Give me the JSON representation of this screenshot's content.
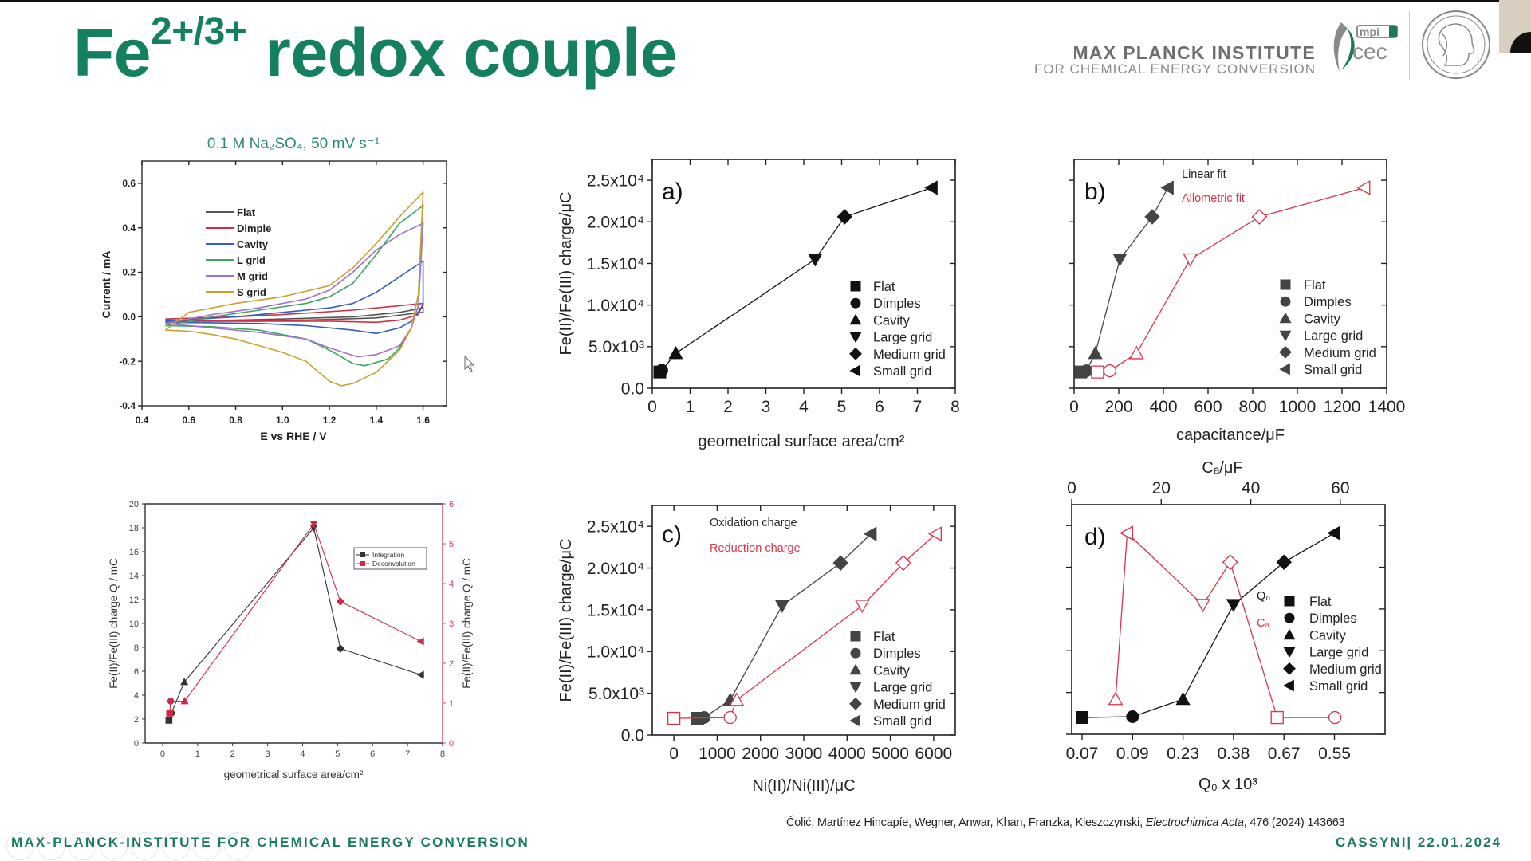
{
  "header": {
    "title_base": "Fe",
    "title_sup": "2+/3+",
    "title_rest": " redox couple",
    "institute_name": "MAX PLANCK INSTITUTE",
    "institute_subtitle": "FOR CHEMICAL ENERGY CONVERSION",
    "logo_text_top": "mpi",
    "logo_text_bottom": "cec"
  },
  "footer": {
    "institute": "MAX-PLANCK-INSTITUTE FOR CHEMICAL ENERGY CONVERSION",
    "citation_authors": "Čolić, Martínez Hincapíe, Wegner, Anwar, Khan, Franzka, Kleszczynski, ",
    "citation_journal": "Electrochimica Acta",
    "citation_rest": ", 476 (2024) 143663",
    "event": "CASSYNI| 22.01.2024"
  },
  "samples": [
    "Flat",
    "Dimples",
    "Cavity",
    "Large grid",
    "Medium grid",
    "Small grid"
  ],
  "colors": {
    "brand_green": "#14805f",
    "red": "#d8344a"
  },
  "chart_data": [
    {
      "type": "line",
      "title": "0.1 M Na₂SO₄, 50 mV s⁻¹",
      "xlabel": "E vs RHE / V",
      "ylabel": "Current / mA",
      "xlim": [
        0.4,
        1.7
      ],
      "ylim": [
        -0.4,
        0.7
      ],
      "xticks": [
        0.4,
        0.6,
        0.8,
        1.0,
        1.2,
        1.4,
        1.6
      ],
      "xtick_labels": [
        "0.4",
        "0.6",
        "0.8",
        "1.0",
        "1.2",
        "1.4",
        "1.6"
      ],
      "yticks": [
        -0.4,
        -0.2,
        0.0,
        0.2,
        0.4,
        0.6
      ],
      "ytick_labels": [
        "-0.4",
        "-0.2",
        "0.0",
        "0.2",
        "0.4",
        "0.6"
      ],
      "legend": "top-left",
      "grid": false,
      "series": [
        {
          "name": "Flat",
          "color": "#555555",
          "points": [
            [
              0.5,
              -0.02
            ],
            [
              0.8,
              -0.015
            ],
            [
              1.0,
              -0.01
            ],
            [
              1.3,
              0.0
            ],
            [
              1.5,
              0.02
            ],
            [
              1.6,
              0.04
            ],
            [
              1.6,
              0.02
            ],
            [
              1.4,
              -0.005
            ],
            [
              1.2,
              -0.012
            ],
            [
              0.9,
              -0.02
            ],
            [
              0.5,
              -0.02
            ]
          ]
        },
        {
          "name": "Dimple",
          "color": "#d03040",
          "points": [
            [
              0.5,
              -0.01
            ],
            [
              0.8,
              0.0
            ],
            [
              1.0,
              0.01
            ],
            [
              1.3,
              0.03
            ],
            [
              1.5,
              0.05
            ],
            [
              1.6,
              0.06
            ],
            [
              1.58,
              0.01
            ],
            [
              1.5,
              -0.015
            ],
            [
              1.4,
              -0.025
            ],
            [
              1.2,
              -0.02
            ],
            [
              0.9,
              -0.02
            ],
            [
              0.5,
              -0.015
            ]
          ]
        },
        {
          "name": "Cavity",
          "color": "#3060c0",
          "points": [
            [
              0.5,
              -0.02
            ],
            [
              0.8,
              0.0
            ],
            [
              1.0,
              0.02
            ],
            [
              1.2,
              0.04
            ],
            [
              1.3,
              0.06
            ],
            [
              1.4,
              0.11
            ],
            [
              1.5,
              0.18
            ],
            [
              1.6,
              0.25
            ],
            [
              1.6,
              0.05
            ],
            [
              1.55,
              -0.02
            ],
            [
              1.5,
              -0.05
            ],
            [
              1.4,
              -0.075
            ],
            [
              1.3,
              -0.06
            ],
            [
              1.1,
              -0.04
            ],
            [
              0.9,
              -0.03
            ],
            [
              0.5,
              -0.025
            ]
          ]
        },
        {
          "name": "L grid",
          "color": "#3aa85a",
          "points": [
            [
              0.5,
              -0.04
            ],
            [
              0.7,
              0.0
            ],
            [
              0.9,
              0.03
            ],
            [
              1.1,
              0.06
            ],
            [
              1.2,
              0.09
            ],
            [
              1.3,
              0.15
            ],
            [
              1.4,
              0.28
            ],
            [
              1.5,
              0.42
            ],
            [
              1.6,
              0.5
            ],
            [
              1.58,
              0.1
            ],
            [
              1.55,
              -0.05
            ],
            [
              1.5,
              -0.14
            ],
            [
              1.45,
              -0.19
            ],
            [
              1.35,
              -0.22
            ],
            [
              1.3,
              -0.21
            ],
            [
              1.2,
              -0.15
            ],
            [
              1.1,
              -0.1
            ],
            [
              0.9,
              -0.06
            ],
            [
              0.7,
              -0.045
            ],
            [
              0.5,
              -0.04
            ]
          ]
        },
        {
          "name": "M grid",
          "color": "#a070d0",
          "points": [
            [
              0.5,
              -0.03
            ],
            [
              0.7,
              0.01
            ],
            [
              0.9,
              0.04
            ],
            [
              1.1,
              0.08
            ],
            [
              1.2,
              0.12
            ],
            [
              1.3,
              0.2
            ],
            [
              1.4,
              0.3
            ],
            [
              1.5,
              0.37
            ],
            [
              1.6,
              0.42
            ],
            [
              1.58,
              0.05
            ],
            [
              1.55,
              -0.05
            ],
            [
              1.5,
              -0.13
            ],
            [
              1.4,
              -0.17
            ],
            [
              1.32,
              -0.18
            ],
            [
              1.2,
              -0.14
            ],
            [
              1.1,
              -0.1
            ],
            [
              0.9,
              -0.07
            ],
            [
              0.7,
              -0.05
            ],
            [
              0.5,
              -0.03
            ]
          ]
        },
        {
          "name": "S grid",
          "color": "#c9a030",
          "points": [
            [
              0.5,
              -0.06
            ],
            [
              0.6,
              0.02
            ],
            [
              0.8,
              0.06
            ],
            [
              1.0,
              0.09
            ],
            [
              1.2,
              0.14
            ],
            [
              1.3,
              0.22
            ],
            [
              1.4,
              0.33
            ],
            [
              1.5,
              0.45
            ],
            [
              1.6,
              0.56
            ],
            [
              1.58,
              0.1
            ],
            [
              1.55,
              -0.05
            ],
            [
              1.5,
              -0.15
            ],
            [
              1.4,
              -0.25
            ],
            [
              1.3,
              -0.3
            ],
            [
              1.25,
              -0.31
            ],
            [
              1.2,
              -0.29
            ],
            [
              1.1,
              -0.2
            ],
            [
              1.0,
              -0.16
            ],
            [
              0.9,
              -0.13
            ],
            [
              0.8,
              -0.1
            ],
            [
              0.7,
              -0.08
            ],
            [
              0.6,
              -0.065
            ],
            [
              0.5,
              -0.06
            ]
          ]
        }
      ]
    },
    {
      "type": "line",
      "xlabel": "geometrical surface area/cm²",
      "ylabel": "Fe(II)/Fe(III) charge Q / mC",
      "ylabel_right": "Fe(II)/Fe(III) charge Q / mC",
      "xlim": [
        -0.5,
        8
      ],
      "ylim": [
        0,
        20
      ],
      "ylim_right": [
        0,
        6
      ],
      "xticks": [
        0,
        1,
        2,
        3,
        4,
        5,
        6,
        7,
        8
      ],
      "xtick_labels": [
        "0",
        "1",
        "2",
        "3",
        "4",
        "5",
        "6",
        "7",
        "8"
      ],
      "yticks": [
        0,
        2,
        4,
        6,
        8,
        10,
        12,
        14,
        16,
        18,
        20
      ],
      "ytick_labels": [
        "0",
        "2",
        "4",
        "6",
        "8",
        "10",
        "12",
        "14",
        "16",
        "18",
        "20"
      ],
      "yticks_right": [
        0,
        1,
        2,
        3,
        4,
        5,
        6
      ],
      "ytick_labels_right": [
        "0",
        "1",
        "2",
        "3",
        "4",
        "5",
        "6"
      ],
      "legend": "top-right",
      "series": [
        {
          "name": "Integration",
          "color": "#333333",
          "axis": "left",
          "x": [
            0.18,
            0.25,
            0.62,
            4.32,
            5.08,
            7.38
          ],
          "y": [
            1.9,
            2.5,
            5.1,
            18.0,
            7.9,
            5.7
          ]
        },
        {
          "name": "Deconvolution",
          "color": "#d02848",
          "axis": "right",
          "x": [
            0.2,
            0.23,
            0.63,
            4.32,
            5.08,
            7.38
          ],
          "y": [
            0.75,
            1.05,
            1.05,
            5.5,
            3.55,
            2.55
          ]
        }
      ]
    },
    {
      "type": "line",
      "panel": "a)",
      "xlabel": "geometrical surface area/cm²",
      "ylabel": "Fe(II)/Fe(III) charge/μC",
      "xlim": [
        0,
        8
      ],
      "ylim": [
        0,
        27500
      ],
      "xticks": [
        0,
        1,
        2,
        3,
        4,
        5,
        6,
        7,
        8
      ],
      "xtick_labels": [
        "0",
        "1",
        "2",
        "3",
        "4",
        "5",
        "6",
        "7",
        "8"
      ],
      "yticks": [
        0,
        5000,
        10000,
        15000,
        20000,
        25000
      ],
      "ytick_labels": [
        "0.0",
        "5.0x10³",
        "1.0x10⁴",
        "1.5x10⁴",
        "2.0x10⁴",
        "2.5x10⁴"
      ],
      "legend": "bottom-right",
      "series": [
        {
          "color": "#111111",
          "filled": true,
          "x": [
            0.2,
            0.25,
            0.62,
            4.3,
            5.08,
            7.38
          ],
          "y": [
            1950,
            2150,
            4200,
            15500,
            20600,
            24100
          ]
        }
      ]
    },
    {
      "type": "line",
      "panel": "b)",
      "xlabel": "capacitance/μF",
      "xlim": [
        0,
        1400
      ],
      "ylim": [
        0,
        27500
      ],
      "xticks": [
        0,
        200,
        400,
        600,
        800,
        1000,
        1200,
        1400
      ],
      "xtick_labels": [
        "0",
        "200",
        "400",
        "600",
        "800",
        "1000",
        "1200",
        "1400"
      ],
      "yticks": [
        0,
        5000,
        10000,
        15000,
        20000,
        25000
      ],
      "legend": "bottom-right",
      "annotations": [
        {
          "text": "Linear fit",
          "color": "#222222"
        },
        {
          "text": "Allometric fit",
          "color": "#d8344a"
        }
      ],
      "series": [
        {
          "name": "Linear fit",
          "color": "#444444",
          "filled": true,
          "x": [
            30,
            55,
            95,
            205,
            350,
            420
          ],
          "y": [
            1950,
            2100,
            4200,
            15500,
            20600,
            24100
          ]
        },
        {
          "name": "Allometric fit",
          "color": "#d8344a",
          "filled": false,
          "x": [
            105,
            160,
            280,
            520,
            830,
            1300
          ],
          "y": [
            1950,
            2100,
            4200,
            15500,
            20600,
            24100
          ]
        }
      ]
    },
    {
      "type": "line",
      "panel": "c)",
      "xlabel": "Ni(II)/Ni(III)/μC",
      "ylabel": "Fe(II)/Fe(III) charge/μC",
      "xlim": [
        -500,
        6500
      ],
      "ylim": [
        0,
        27500
      ],
      "xticks": [
        0,
        1000,
        2000,
        3000,
        4000,
        5000,
        6000
      ],
      "xtick_labels": [
        "0",
        "1000",
        "2000",
        "3000",
        "4000",
        "5000",
        "6000"
      ],
      "yticks": [
        0,
        5000,
        10000,
        15000,
        20000,
        25000
      ],
      "ytick_labels": [
        "0.0",
        "5.0x10³",
        "1.0x10⁴",
        "1.5x10⁴",
        "2.0x10⁴",
        "2.5x10⁴"
      ],
      "legend": "bottom-right",
      "annotations": [
        {
          "text": "Oxidation charge",
          "color": "#222222"
        },
        {
          "text": "Reduction charge",
          "color": "#d8344a"
        }
      ],
      "series": [
        {
          "name": "Oxidation charge",
          "color": "#444444",
          "filled": true,
          "x": [
            550,
            700,
            1300,
            2500,
            3850,
            4550
          ],
          "y": [
            2000,
            2100,
            4200,
            15500,
            20600,
            24100
          ]
        },
        {
          "name": "Reduction charge",
          "color": "#d8344a",
          "filled": false,
          "x": [
            0,
            1300,
            1450,
            4350,
            5300,
            6050
          ],
          "y": [
            2000,
            2100,
            4200,
            15500,
            20600,
            24100
          ]
        }
      ]
    },
    {
      "type": "line",
      "panel": "d)",
      "xlabel": "Q₀ x 10³",
      "xlabel_top": "Cₐ/μF",
      "xtick_labels": [
        "0.07",
        "0.09",
        "0.23",
        "0.38",
        "0.67",
        "0.55"
      ],
      "xlim_top": [
        0,
        70
      ],
      "xticks_top": [
        0,
        20,
        40,
        60
      ],
      "xtick_labels_top": [
        "0",
        "20",
        "40",
        "60"
      ],
      "ylim": [
        0,
        27500
      ],
      "yticks": [
        0,
        5000,
        10000,
        15000,
        20000,
        25000
      ],
      "legend": "right",
      "annotations": [
        {
          "text": "Q₀",
          "color": "#222222"
        },
        {
          "text": "Cₐ",
          "color": "#d8344a"
        }
      ],
      "series": [
        {
          "name": "Q₀",
          "color": "#111111",
          "filled": true,
          "axis": "bottom",
          "x": [
            0.07,
            0.09,
            0.23,
            0.38,
            0.67,
            0.55
          ],
          "y": [
            2000,
            2100,
            4200,
            15500,
            20600,
            24100
          ]
        },
        {
          "name": "Cₐ",
          "color": "#d8344a",
          "filled": false,
          "axis": "top",
          "x": [
            45.9,
            58.8,
            9.8,
            29.3,
            35.4,
            12.4
          ],
          "y": [
            2000,
            2000,
            4200,
            15500,
            20600,
            24100
          ]
        }
      ]
    }
  ]
}
